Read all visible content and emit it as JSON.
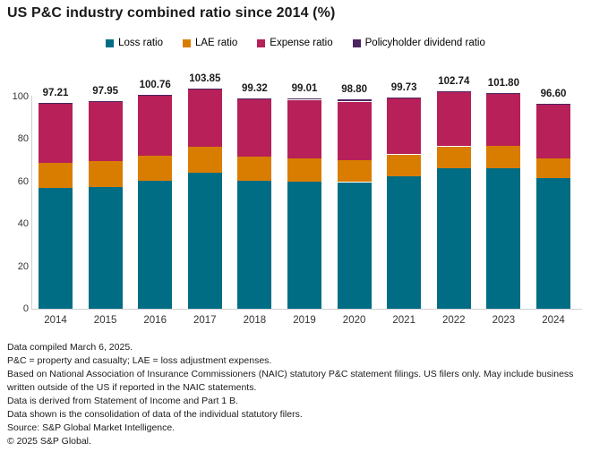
{
  "title": "US P&C industry combined ratio since 2014 (%)",
  "legend": [
    {
      "label": "Loss ratio",
      "color": "#006d84"
    },
    {
      "label": "LAE ratio",
      "color": "#d97d00"
    },
    {
      "label": "Expense ratio",
      "color": "#b72058"
    },
    {
      "label": "Policyholder dividend ratio",
      "color": "#4c2460"
    }
  ],
  "chart_data": {
    "type": "bar",
    "stacked": true,
    "title": "US P&C industry combined ratio since 2014 (%)",
    "categories": [
      "2014",
      "2015",
      "2016",
      "2017",
      "2018",
      "2019",
      "2020",
      "2021",
      "2022",
      "2023",
      "2024"
    ],
    "series": [
      {
        "name": "Loss ratio",
        "color": "#006d84",
        "values": [
          57.0,
          57.3,
          60.4,
          64.0,
          60.4,
          59.9,
          59.7,
          62.4,
          66.3,
          66.3,
          61.5
        ]
      },
      {
        "name": "LAE ratio",
        "color": "#d97d00",
        "values": [
          11.9,
          12.2,
          11.7,
          12.3,
          11.2,
          11.0,
          10.4,
          10.4,
          10.3,
          10.4,
          9.2
        ]
      },
      {
        "name": "Expense ratio",
        "color": "#b72058",
        "values": [
          27.8,
          27.95,
          28.16,
          27.05,
          27.22,
          27.61,
          27.6,
          26.63,
          25.84,
          24.8,
          25.6
        ]
      },
      {
        "name": "Policyholder dividend ratio",
        "color": "#4c2460",
        "values": [
          0.51,
          0.5,
          0.5,
          0.5,
          0.5,
          0.5,
          1.1,
          0.3,
          0.3,
          0.3,
          0.3
        ]
      }
    ],
    "totals": [
      "97.21",
      "97.95",
      "100.76",
      "103.85",
      "99.32",
      "99.01",
      "98.80",
      "99.73",
      "102.74",
      "101.80",
      "96.60"
    ],
    "xlabel": "",
    "ylabel": "",
    "ylim": [
      0,
      100
    ],
    "yticks": [
      0,
      20,
      40,
      60,
      80,
      100
    ],
    "grid": false,
    "legend_position": "top"
  },
  "footnotes": [
    "Data compiled March 6, 2025.",
    "P&C = property and casualty; LAE = loss adjustment expenses.",
    "Based on National Association of Insurance Commissioners (NAIC) statutory P&C statement filings. US filers only. May include business written outside of the US if reported in the NAIC statements.",
    "Data is derived from Statement of Income and Part 1 B.",
    "Data shown is the consolidation of data of the individual statutory filers.",
    "Source: S&P Global Market Intelligence.",
    "© 2025 S&P Global."
  ]
}
